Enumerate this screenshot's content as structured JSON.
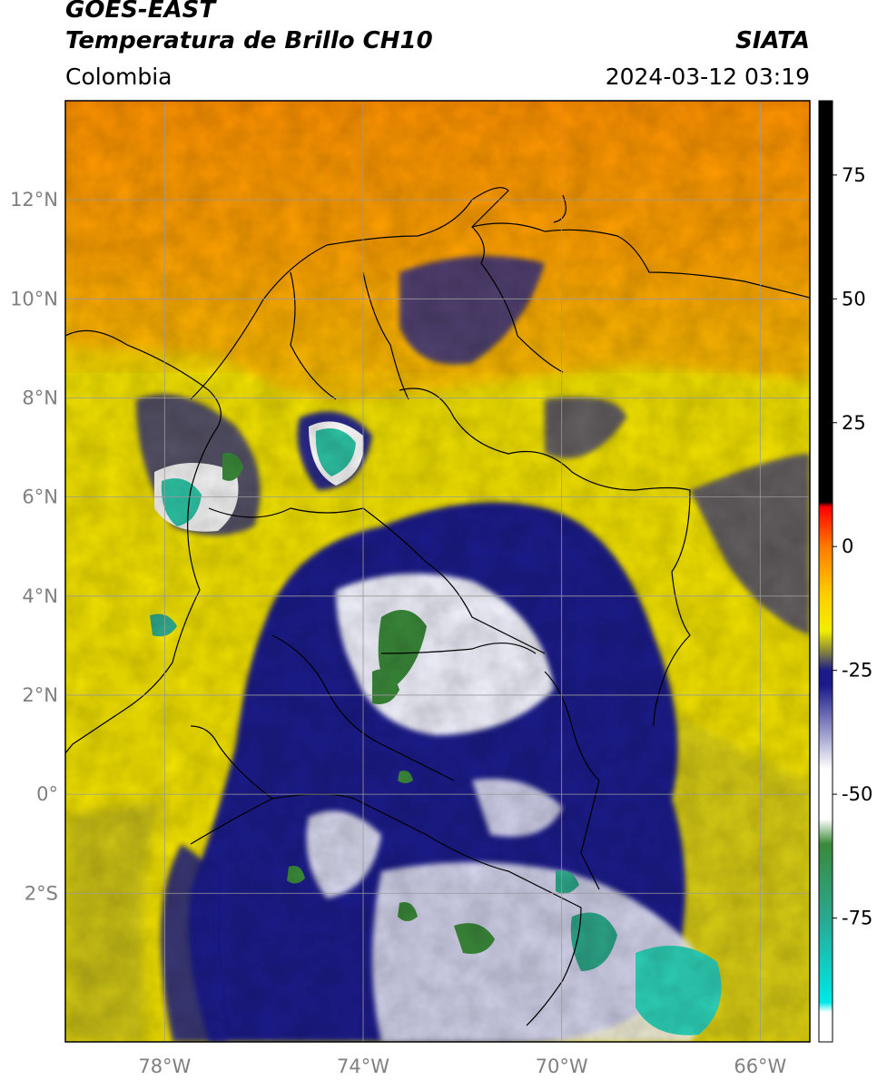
{
  "header": {
    "satellite": "GOES-EAST",
    "product": "Temperatura de Brillo CH10",
    "organization": "SIATA",
    "region": "Colombia",
    "timestamp": "2024-03-12 03:19"
  },
  "map": {
    "lon_range": [
      -80,
      -65
    ],
    "lat_range": [
      -5,
      14
    ],
    "lat_ticks": [
      {
        "value": 12,
        "label": "12°N"
      },
      {
        "value": 10,
        "label": "10°N"
      },
      {
        "value": 8,
        "label": "8°N"
      },
      {
        "value": 6,
        "label": "6°N"
      },
      {
        "value": 4,
        "label": "4°N"
      },
      {
        "value": 2,
        "label": "2°N"
      },
      {
        "value": 0,
        "label": "0°"
      },
      {
        "value": -2,
        "label": "2°S"
      }
    ],
    "lon_ticks": [
      {
        "value": -78,
        "label": "78°W"
      },
      {
        "value": -74,
        "label": "74°W"
      },
      {
        "value": -70,
        "label": "70°W"
      },
      {
        "value": -66,
        "label": "66°W"
      }
    ],
    "gridlines": true,
    "background_color": "#f5e400",
    "ocean_north_color": "#ff8c00",
    "cold_cloud_colors": [
      "#1c1c8c",
      "#ffffff",
      "#3a8a3a",
      "#2fc7a8"
    ]
  },
  "colorbar": {
    "range": [
      -100,
      90
    ],
    "ticks": [
      {
        "value": 75,
        "label": "75"
      },
      {
        "value": 50,
        "label": "50"
      },
      {
        "value": 25,
        "label": "25"
      },
      {
        "value": 0,
        "label": "0"
      },
      {
        "value": -25,
        "label": "-25"
      },
      {
        "value": -50,
        "label": "-50"
      },
      {
        "value": -75,
        "label": "-75"
      }
    ],
    "stops": [
      {
        "value": 90,
        "color": "#000000"
      },
      {
        "value": 9,
        "color": "#000000"
      },
      {
        "value": 8,
        "color": "#ff0000"
      },
      {
        "value": 0,
        "color": "#ff7a00"
      },
      {
        "value": -10,
        "color": "#ffd000"
      },
      {
        "value": -17,
        "color": "#f2ee00"
      },
      {
        "value": -21,
        "color": "#8c8a3a"
      },
      {
        "value": -25,
        "color": "#1a1a8a"
      },
      {
        "value": -28,
        "color": "#1a1a8a"
      },
      {
        "value": -45,
        "color": "#ffffff"
      },
      {
        "value": -55,
        "color": "#ffffff"
      },
      {
        "value": -60,
        "color": "#3a8a3a"
      },
      {
        "value": -75,
        "color": "#2aa890"
      },
      {
        "value": -92,
        "color": "#00e8e8"
      },
      {
        "value": -94,
        "color": "#ffffff"
      },
      {
        "value": -100,
        "color": "#ffffff"
      }
    ]
  }
}
